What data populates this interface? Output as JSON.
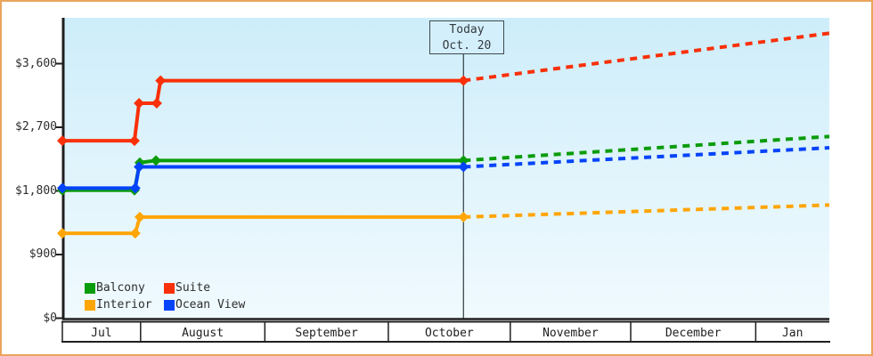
{
  "frame": {
    "border_color": "#eaa55c",
    "background_color": "#ffffff",
    "plot_gradient": [
      "#cdedfa",
      "#e0f4fc",
      "#f0fafe"
    ],
    "axis_color": "#1f1f1f",
    "today_line_color": "#3e4a52"
  },
  "today_marker": {
    "title": "Today",
    "date": "Oct. 20"
  },
  "legend": {
    "items": [
      {
        "label": "Balcony",
        "color": "#0b9c0b"
      },
      {
        "label": "Suite",
        "color": "#f93008"
      },
      {
        "label": "Interior",
        "color": "#ffa506"
      },
      {
        "label": "Ocean View",
        "color": "#0343fa"
      }
    ]
  },
  "chart_data": {
    "type": "line",
    "description": "Cabin price history (solid) and forecast (dotted) by category",
    "grid": false,
    "legend_position": "bottom-left inside plot",
    "ylim": [
      0,
      4250
    ],
    "yticks": [
      {
        "value": 0,
        "label": "$0"
      },
      {
        "value": 900,
        "label": "$900"
      },
      {
        "value": 1800,
        "label": "$1,800"
      },
      {
        "value": 2700,
        "label": "$2,700"
      },
      {
        "value": 3600,
        "label": "$3,600"
      }
    ],
    "x_axis": {
      "labels": [
        "Jul",
        "August",
        "September",
        "October",
        "November",
        "December",
        "Jan"
      ],
      "boundaries_frac": [
        0,
        0.102,
        0.264,
        0.425,
        0.584,
        0.741,
        0.904,
        1.0
      ]
    },
    "today_frac": 0.523,
    "series": [
      {
        "name": "Balcony",
        "color": "#0b9c0b",
        "history": [
          [
            0,
            1810
          ],
          [
            0.094,
            1810
          ],
          [
            0.101,
            2200
          ],
          [
            0.122,
            2230
          ],
          [
            0.523,
            2230
          ]
        ],
        "forecast": [
          [
            0.523,
            2230
          ],
          [
            1.0,
            2570
          ]
        ]
      },
      {
        "name": "Ocean View",
        "color": "#0343fa",
        "history": [
          [
            0,
            1840
          ],
          [
            0.095,
            1840
          ],
          [
            0.1,
            2140
          ],
          [
            0.523,
            2140
          ]
        ],
        "forecast": [
          [
            0.523,
            2140
          ],
          [
            1.0,
            2410
          ]
        ]
      },
      {
        "name": "Interior",
        "color": "#ffa506",
        "history": [
          [
            0,
            1200
          ],
          [
            0.095,
            1200
          ],
          [
            0.101,
            1430
          ],
          [
            0.523,
            1430
          ]
        ],
        "forecast": [
          [
            0.523,
            1430
          ],
          [
            1.0,
            1600
          ]
        ]
      },
      {
        "name": "Suite",
        "color": "#f93008",
        "history": [
          [
            0,
            2510
          ],
          [
            0.094,
            2510
          ],
          [
            0.1,
            3040
          ],
          [
            0.123,
            3040
          ],
          [
            0.128,
            3360
          ],
          [
            0.523,
            3360
          ]
        ],
        "forecast": [
          [
            0.523,
            3360
          ],
          [
            1.0,
            4030
          ]
        ]
      }
    ]
  }
}
